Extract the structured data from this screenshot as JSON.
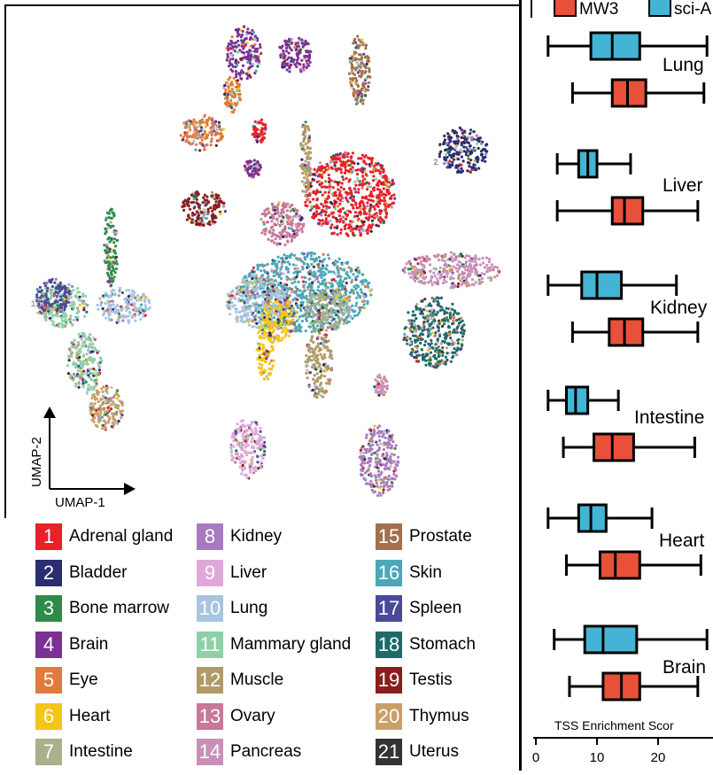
{
  "chart_data": [
    {
      "type": "scatter",
      "xlabel": "UMAP-1",
      "ylabel": "UMAP-2",
      "clusters": [
        {
          "id": "1",
          "name": "Adrenal gland",
          "color": "#e8202a"
        },
        {
          "id": "2",
          "name": "Bladder",
          "color": "#2a2d6e"
        },
        {
          "id": "3",
          "name": "Bone marrow",
          "color": "#2e8b4a"
        },
        {
          "id": "4",
          "name": "Brain",
          "color": "#7b3294"
        },
        {
          "id": "5",
          "name": "Eye",
          "color": "#e07b3c"
        },
        {
          "id": "6",
          "name": "Heart",
          "color": "#f5c518"
        },
        {
          "id": "7",
          "name": "Intestine",
          "color": "#a8b08c"
        },
        {
          "id": "8",
          "name": "Kidney",
          "color": "#a87bc0"
        },
        {
          "id": "9",
          "name": "Liver",
          "color": "#e0a8d8"
        },
        {
          "id": "10",
          "name": "Lung",
          "color": "#a8c4e0"
        },
        {
          "id": "11",
          "name": "Mammary gland",
          "color": "#8ed0a8"
        },
        {
          "id": "12",
          "name": "Muscle",
          "color": "#b09a68"
        },
        {
          "id": "13",
          "name": "Ovary",
          "color": "#c87898"
        },
        {
          "id": "14",
          "name": "Pancreas",
          "color": "#c890b8"
        },
        {
          "id": "15",
          "name": "Prostate",
          "color": "#a07050"
        },
        {
          "id": "16",
          "name": "Skin",
          "color": "#4aa8b8"
        },
        {
          "id": "17",
          "name": "Spleen",
          "color": "#4a4a98"
        },
        {
          "id": "18",
          "name": "Stomach",
          "color": "#1e6a68"
        },
        {
          "id": "19",
          "name": "Testis",
          "color": "#8a1e1e"
        },
        {
          "id": "20",
          "name": "Thymus",
          "color": "#c8a068"
        },
        {
          "id": "21",
          "name": "Uterus",
          "color": "#333333"
        }
      ]
    },
    {
      "type": "box",
      "xlabel": "TSS Enrichment Scor",
      "x_ticks": [
        0,
        10,
        20
      ],
      "legend": [
        {
          "name": "MW3",
          "color": "#e8503a"
        },
        {
          "name": "sci-A",
          "color": "#44b4d4"
        }
      ],
      "groups": [
        {
          "label": "Lung",
          "sci": {
            "min": 2,
            "q1": 9,
            "median": 12.5,
            "q3": 17,
            "max": 28
          },
          "mw3": {
            "min": 6,
            "q1": 12.5,
            "median": 15,
            "q3": 18,
            "max": 27.5
          }
        },
        {
          "label": "Liver",
          "sci": {
            "min": 3.5,
            "q1": 7,
            "median": 8.5,
            "q3": 10,
            "max": 15.5
          },
          "mw3": {
            "min": 3.5,
            "q1": 12.5,
            "median": 14.5,
            "q3": 17.5,
            "max": 26.5
          }
        },
        {
          "label": "Kidney",
          "sci": {
            "min": 2,
            "q1": 7.5,
            "median": 10,
            "q3": 14,
            "max": 23
          },
          "mw3": {
            "min": 6,
            "q1": 12,
            "median": 14.5,
            "q3": 17.5,
            "max": 26.5
          }
        },
        {
          "label": "Intestine",
          "sci": {
            "min": 2,
            "q1": 5,
            "median": 6.5,
            "q3": 8.5,
            "max": 13.5
          },
          "mw3": {
            "min": 4.5,
            "q1": 9.5,
            "median": 12.5,
            "q3": 16,
            "max": 26
          }
        },
        {
          "label": "Heart",
          "sci": {
            "min": 2,
            "q1": 7,
            "median": 9,
            "q3": 11.5,
            "max": 19
          },
          "mw3": {
            "min": 5,
            "q1": 10.5,
            "median": 13,
            "q3": 17,
            "max": 27
          }
        },
        {
          "label": "Brain",
          "sci": {
            "min": 3,
            "q1": 8,
            "median": 11,
            "q3": 16.5,
            "max": 28
          },
          "mw3": {
            "min": 5.5,
            "q1": 11,
            "median": 14,
            "q3": 17,
            "max": 26.5
          }
        }
      ]
    }
  ]
}
